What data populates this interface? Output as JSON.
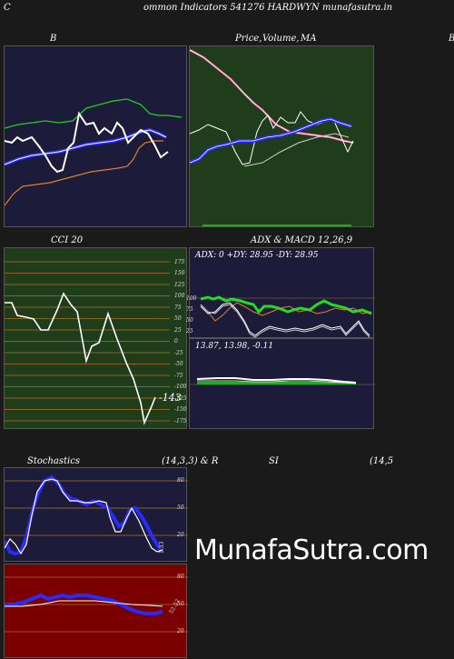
{
  "header": {
    "left_letter": "C",
    "title": "ommon  Indicators 541276  HARDWYN  munafasutra.in"
  },
  "panels": {
    "bollinger": {
      "title": "B"
    },
    "price": {
      "title_a": "Price,",
      "title_b": "Volume,",
      "title_c": "MA",
      "right_letter": "B"
    },
    "cci": {
      "title": "CCI 20",
      "levels": [
        "175",
        "150",
        "125",
        "100",
        "75",
        "50",
        "25",
        "0",
        "-25",
        "-50",
        "-75",
        "-100",
        "-125",
        "-150",
        "-175"
      ],
      "value": "-143"
    },
    "adx": {
      "title": "ADX  & MACD 12,26,9",
      "readout": "ADX: 0   +DY: 28.95 -DY: 28.95",
      "levels": [
        "100",
        "75",
        "50",
        "25"
      ]
    },
    "macd": {
      "readout": "13.87,   13.98,   -0.11"
    },
    "stoch": {
      "title_a": "Stochastics",
      "title_b": "(14,3,3) & R",
      "title_c": "SI",
      "title_d": "(14,5",
      "levels": [
        "80",
        "50",
        "20"
      ],
      "value": "1.33"
    },
    "rsi": {
      "levels": [
        "80",
        "50",
        "20"
      ],
      "value": "52.52"
    }
  },
  "watermark": "MunafaSutra.com",
  "colors": {
    "navy": "#1c1c3a",
    "green_bg": "#1f3d1a",
    "red_bg": "#7a0000",
    "band_green": "#22cc22",
    "blue": "#2a2aff",
    "orange": "#e08020"
  }
}
